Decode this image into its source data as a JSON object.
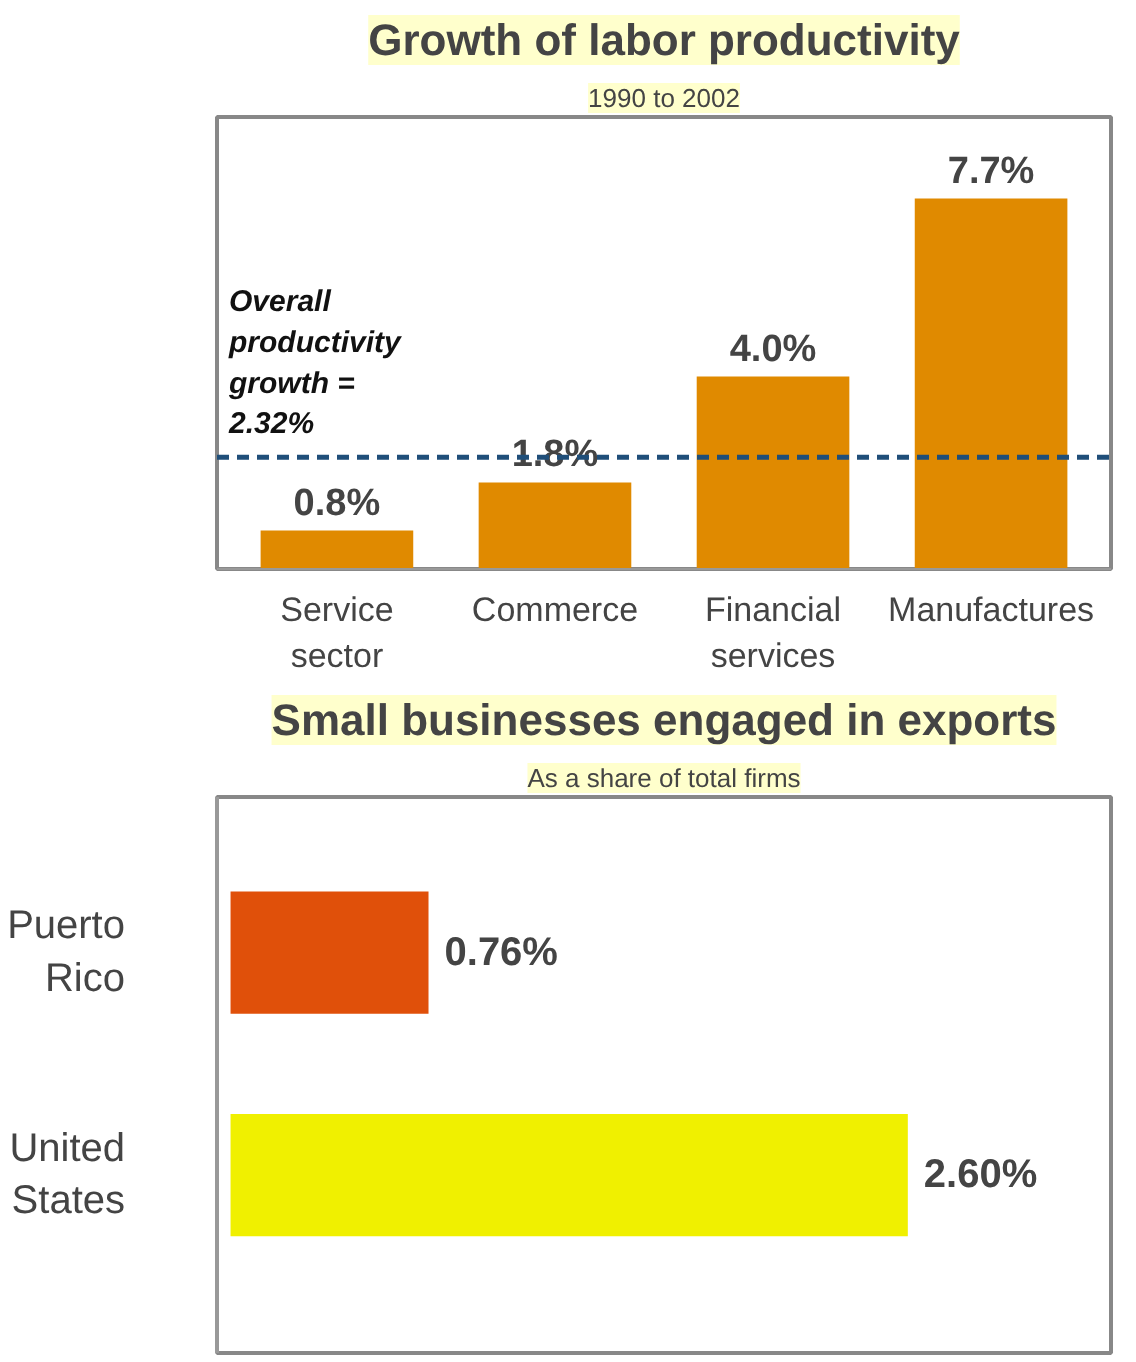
{
  "chart_data": [
    {
      "type": "bar",
      "title": "Growth of labor productivity",
      "subtitle": "1990 to 2002",
      "categories": [
        "Service sector",
        "Commerce",
        "Financial services",
        "Manufactures"
      ],
      "values": [
        0.8,
        1.8,
        4.0,
        7.7
      ],
      "color": "#e08a00",
      "value_labels": [
        "0.8%",
        "1.8%",
        "4.0%",
        "7.7%"
      ],
      "ref_lines": [
        {
          "axis": "y",
          "value": 2.32,
          "label": "Overall productivity growth = 2.32%",
          "color": "#1f4e79",
          "line_style": "dashed"
        }
      ],
      "grid": false
    },
    {
      "type": "bar",
      "orientation": "horizontal",
      "title": "Small businesses engaged in exports",
      "subtitle": "As a share of total firms",
      "categories": [
        "Puerto Rico",
        "United States"
      ],
      "values": [
        0.76,
        2.6
      ],
      "colors": [
        "#e0500a",
        "#f0f000"
      ],
      "value_labels": [
        "0.76%",
        "2.60%"
      ],
      "grid": false
    }
  ]
}
